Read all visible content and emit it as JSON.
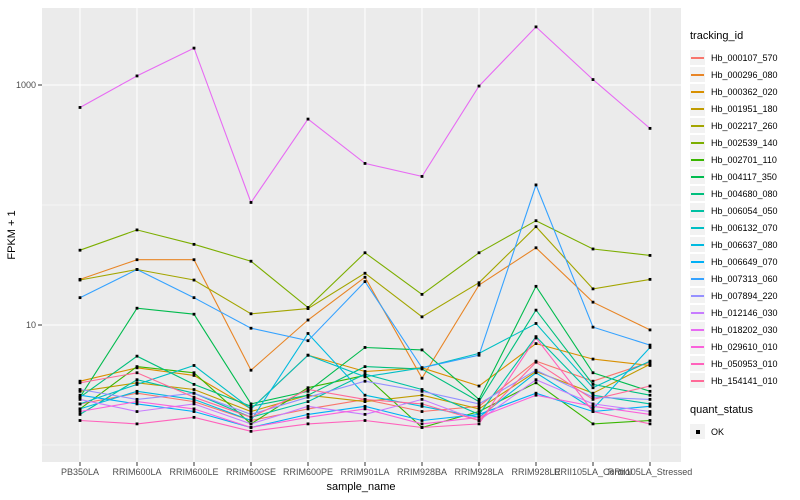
{
  "chart_data": {
    "type": "line",
    "title": "",
    "xlabel": "sample_name",
    "ylabel": "FPKM + 1",
    "y_scale": "log10",
    "y_tick_labels": [
      "10",
      "1000"
    ],
    "y_ticks": [
      10,
      1000
    ],
    "y_minor": [
      1,
      100
    ],
    "ylim": [
      0.72,
      4400
    ],
    "grid": "on",
    "legend_position": "right",
    "panel_bg": "#ebebeb",
    "grid_color": "#ffffff",
    "point_color": "#000000",
    "point_shape": "small-black-square",
    "categories": [
      "PB350LA",
      "RRIM600LA",
      "RRIM600LE",
      "RRIM600SE",
      "RRIM600PE",
      "RRIM901LA",
      "RRIM928BA",
      "RRIM928LA",
      "RRIM928LE",
      "RRII105LA_Control",
      "RRII105LA_Stressed"
    ],
    "series": [
      {
        "name": "Hb_000107_570",
        "color": "#F8766D",
        "values": [
          2.2,
          2.7,
          2.3,
          1.6,
          2.0,
          2.4,
          1.9,
          2.1,
          5.0,
          3.4,
          4.9
        ]
      },
      {
        "name": "Hb_000296_080",
        "color": "#E88526",
        "values": [
          24,
          35,
          35,
          4.2,
          11,
          25,
          3.6,
          21.5,
          44,
          15.5,
          9.1
        ]
      },
      {
        "name": "Hb_000362_020",
        "color": "#D89000",
        "values": [
          3.4,
          4.4,
          3.8,
          2.0,
          5.6,
          4.1,
          4.4,
          3.1,
          7.0,
          5.2,
          4.6
        ]
      },
      {
        "name": "Hb_001951_180",
        "color": "#C09B00",
        "values": [
          2.8,
          3.3,
          2.9,
          1.9,
          2.6,
          2.3,
          2.6,
          2.0,
          4.1,
          2.7,
          4.7
        ]
      },
      {
        "name": "Hb_002217_260",
        "color": "#A3A500",
        "values": [
          23.7,
          29,
          23.7,
          12.4,
          13.7,
          27,
          11.7,
          22.5,
          66,
          20,
          24
        ]
      },
      {
        "name": "Hb_002539_140",
        "color": "#7CAE00",
        "values": [
          42,
          62,
          47,
          34,
          14,
          40,
          18,
          40,
          74,
          43,
          38
        ]
      },
      {
        "name": "Hb_002701_110",
        "color": "#39B600",
        "values": [
          2.0,
          4.5,
          4.0,
          1.5,
          3.0,
          3.8,
          1.4,
          1.9,
          3.3,
          1.5,
          1.6
        ]
      },
      {
        "name": "Hb_004117_350",
        "color": "#00BB4E",
        "values": [
          2.5,
          13.8,
          12.3,
          2.2,
          2.8,
          6.5,
          6.2,
          2.4,
          21,
          4.0,
          2.8
        ]
      },
      {
        "name": "Hb_004680_080",
        "color": "#00BF7D",
        "values": [
          2.5,
          5.5,
          3.2,
          2.1,
          2.6,
          4.5,
          4.3,
          2.3,
          13.3,
          3.2,
          2.6
        ]
      },
      {
        "name": "Hb_006054_050",
        "color": "#00C1A3",
        "values": [
          1.8,
          3.5,
          2.7,
          1.7,
          2.3,
          3.9,
          2.9,
          1.8,
          8.0,
          2.6,
          2.2
        ]
      },
      {
        "name": "Hb_006132_070",
        "color": "#00BFC4",
        "values": [
          2.2,
          3.2,
          4.6,
          2.0,
          5.6,
          3.7,
          4.4,
          5.8,
          10.3,
          3.0,
          5.0
        ]
      },
      {
        "name": "Hb_006637_080",
        "color": "#00BAE0",
        "values": [
          2.0,
          2.8,
          2.4,
          1.6,
          8.5,
          2.6,
          2.1,
          1.7,
          4.0,
          2.0,
          6.5
        ]
      },
      {
        "name": "Hb_006649_070",
        "color": "#00B0F6",
        "values": [
          2.6,
          2.2,
          1.9,
          1.4,
          1.8,
          2.1,
          1.6,
          1.8,
          2.7,
          1.9,
          2.1
        ]
      },
      {
        "name": "Hb_007313_060",
        "color": "#35A2FF",
        "values": [
          16.9,
          29,
          16.9,
          9.4,
          7.4,
          23,
          4.4,
          5.6,
          147,
          9.6,
          6.8
        ]
      },
      {
        "name": "Hb_007894_220",
        "color": "#9590FF",
        "values": [
          2.9,
          2.4,
          2.7,
          1.8,
          2.5,
          3.4,
          2.8,
          2.2,
          4.2,
          2.5,
          2.4
        ]
      },
      {
        "name": "Hb_012146_030",
        "color": "#C77CFF",
        "values": [
          2.4,
          1.9,
          2.2,
          1.5,
          2.1,
          1.8,
          2.4,
          1.6,
          3.5,
          2.2,
          1.9
        ]
      },
      {
        "name": "Hb_018202_030",
        "color": "#E76BF3",
        "values": [
          650,
          1190,
          2030,
          105,
          520,
          222,
          173,
          980,
          3050,
          1110,
          435
        ]
      },
      {
        "name": "Hb_029610_010",
        "color": "#FA62DB",
        "values": [
          1.9,
          2.3,
          2.0,
          1.4,
          1.7,
          2.0,
          1.5,
          1.7,
          2.6,
          2.1,
          1.8
        ]
      },
      {
        "name": "Hb_050953_010",
        "color": "#FF62BC",
        "values": [
          1.6,
          1.5,
          1.7,
          1.3,
          1.5,
          1.6,
          1.4,
          1.5,
          7.8,
          1.9,
          1.5
        ]
      },
      {
        "name": "Hb_154141_010",
        "color": "#FF6A98",
        "values": [
          3.3,
          4.0,
          2.5,
          1.7,
          2.9,
          2.4,
          2.2,
          1.6,
          4.9,
          2.4,
          3.1
        ]
      }
    ]
  },
  "legend": {
    "tracking_title": "tracking_id",
    "quant_title": "quant_status",
    "quant_items": [
      {
        "label": "OK"
      }
    ]
  }
}
